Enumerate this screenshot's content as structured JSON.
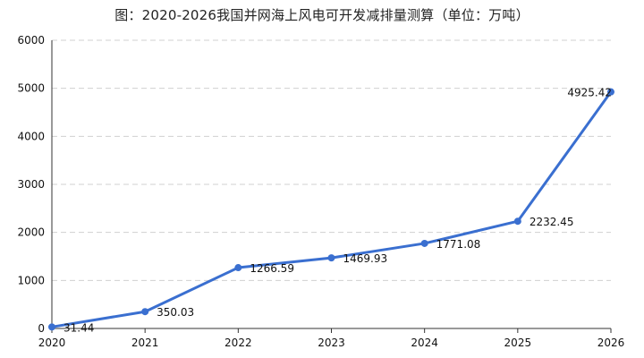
{
  "chart_data": {
    "type": "line",
    "title": "图：2020-2026我国并网海上风电可开发减排量测算（单位：万吨）",
    "x": [
      "2020",
      "2021",
      "2022",
      "2023",
      "2024",
      "2025",
      "2026"
    ],
    "series": [
      {
        "values": [
          31.44,
          350.03,
          1266.59,
          1469.93,
          1771.08,
          2232.45,
          4925.42
        ],
        "labels": [
          "31.44",
          "350.03",
          "1266.59",
          "1469.93",
          "1771.08",
          "2232.45",
          "4925.42"
        ]
      }
    ],
    "ylim": [
      0,
      6000
    ],
    "yticks": [
      "0",
      "1000",
      "2000",
      "3000",
      "4000",
      "5000",
      "6000"
    ],
    "grid": true,
    "colors": {
      "line": "#3a6fd0",
      "grid": "#d0d0d0",
      "axis": "#333333"
    }
  }
}
